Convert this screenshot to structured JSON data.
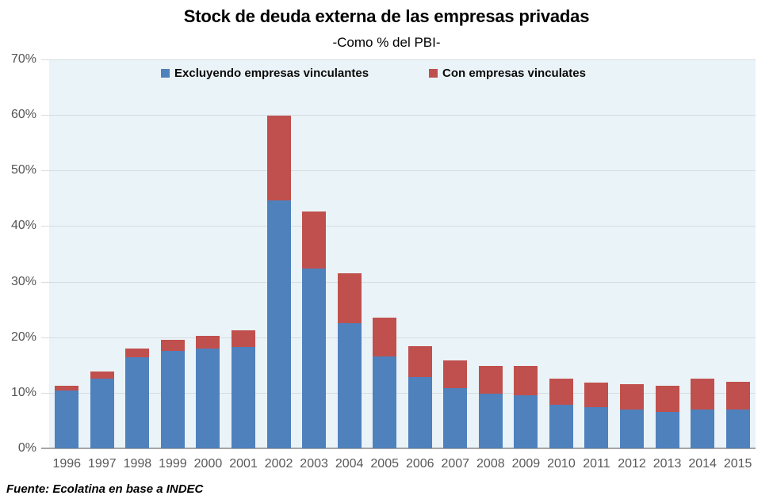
{
  "header": {
    "title": "Stock de deuda externa de las empresas privadas",
    "subtitle": "-Como % del PBI-"
  },
  "footer": {
    "source": "Fuente: Ecolatina en base a INDEC"
  },
  "chart_data": {
    "type": "bar",
    "stacked": true,
    "title": "Stock de deuda externa de las empresas privadas",
    "subtitle": "-Como % del PBI-",
    "categories": [
      "1996",
      "1997",
      "1998",
      "1999",
      "2000",
      "2001",
      "2002",
      "2003",
      "2004",
      "2005",
      "2006",
      "2007",
      "2008",
      "2009",
      "2010",
      "2011",
      "2012",
      "2013",
      "2014",
      "2015"
    ],
    "series": [
      {
        "name": "Excluyendo empresas vinculantes",
        "color": "#4f81bd",
        "values": [
          10.4,
          12.6,
          16.4,
          17.5,
          17.9,
          18.2,
          44.6,
          32.4,
          22.5,
          16.6,
          12.9,
          10.8,
          9.9,
          9.6,
          7.8,
          7.4,
          7.0,
          6.6,
          7.0,
          7.0
        ]
      },
      {
        "name": "Con empresas vinculates",
        "color": "#c0504d",
        "values": [
          0.8,
          1.3,
          1.5,
          2.1,
          2.4,
          3.1,
          15.3,
          10.3,
          9.0,
          6.9,
          5.5,
          5.0,
          5.0,
          5.3,
          4.8,
          4.4,
          4.6,
          4.6,
          5.5,
          5.0
        ]
      }
    ],
    "stack_totals": [
      11.2,
      13.9,
      17.9,
      19.6,
      20.3,
      21.3,
      59.9,
      42.7,
      31.5,
      23.5,
      18.4,
      15.8,
      14.9,
      14.9,
      12.6,
      11.8,
      11.6,
      11.2,
      12.5,
      12.0
    ],
    "xlabel": "",
    "ylabel": "",
    "ylim": [
      0,
      70
    ],
    "y_tick_step": 10,
    "y_tick_labels": [
      "70%",
      "60%",
      "50%",
      "40%",
      "30%",
      "20%",
      "10%",
      "0%"
    ],
    "grid": true,
    "legend_position": "top-inside",
    "plot_bg": "#eaf3f7",
    "gridline_color": "#d6dde1",
    "axis_line_color": "#a6a6a6",
    "tick_label_color": "#545454"
  }
}
